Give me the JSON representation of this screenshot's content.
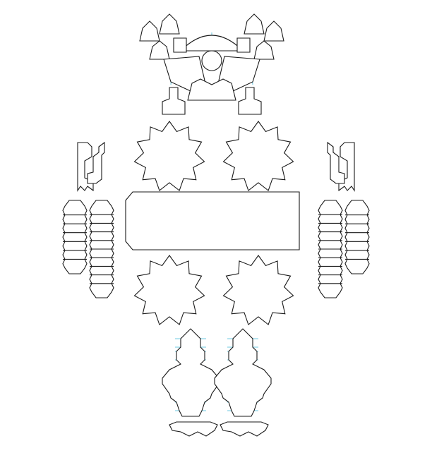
{
  "diagram": {
    "kind": "papercraft-template",
    "labels": [],
    "colors": {
      "background": "#ffffff",
      "cut_line": "#1a1a1a",
      "fold_line": "#3cb9d8"
    },
    "parts": [
      "head-crown-piece",
      "head-center-piece",
      "arm-wrench-piece",
      "star-gear-piece",
      "torso-band-piece",
      "segmented-arm-piece",
      "leg-piece",
      "foot-piece"
    ]
  }
}
